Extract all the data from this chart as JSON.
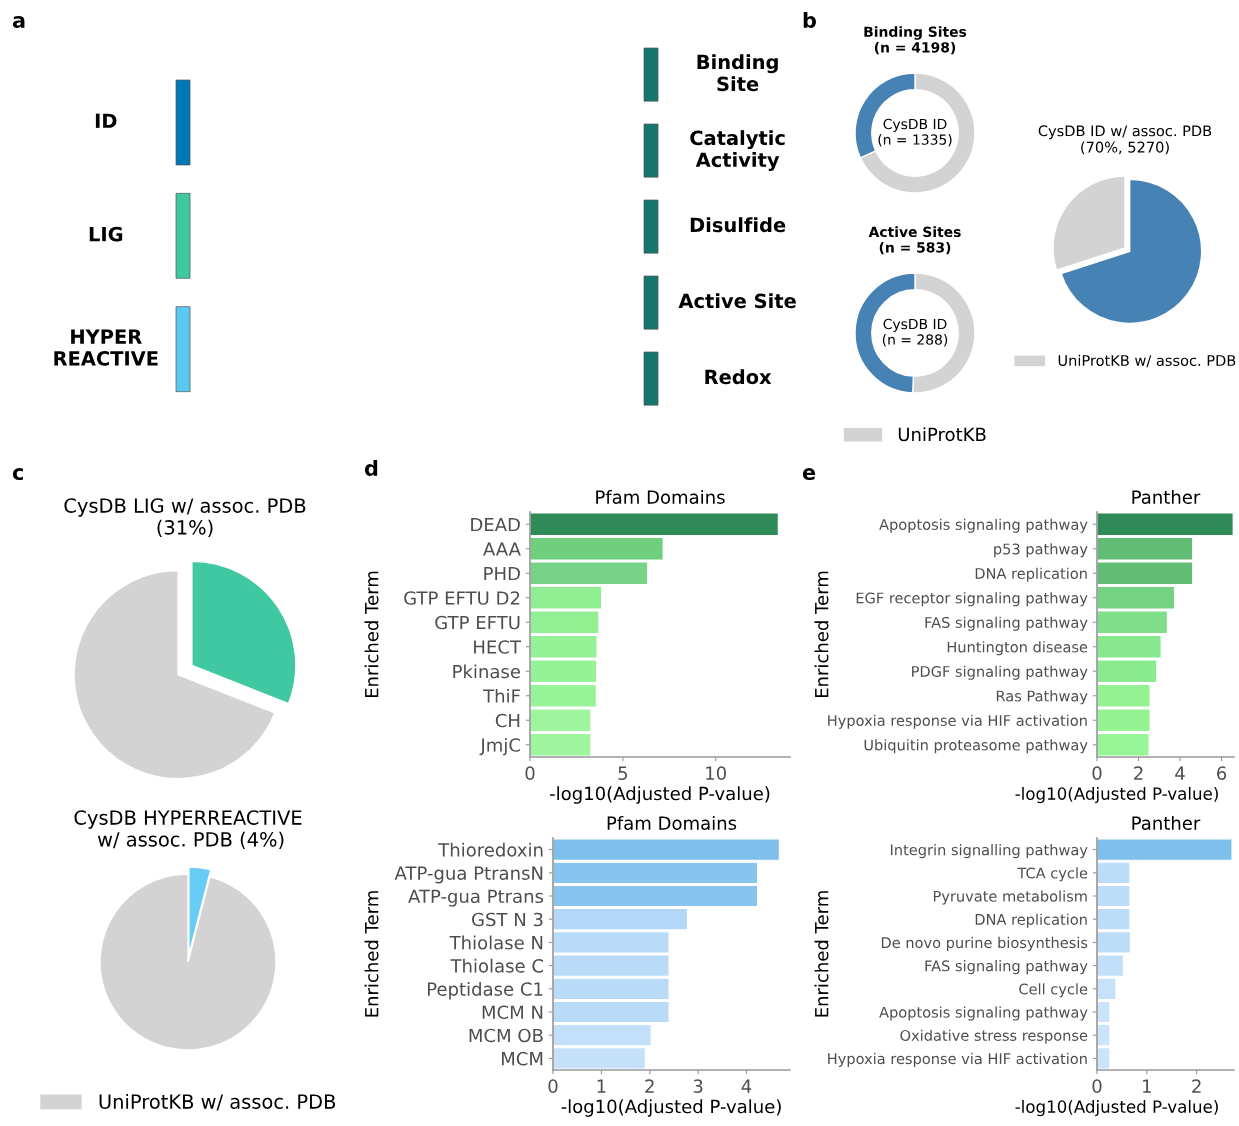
{
  "chart_data": [
    {
      "type": "other",
      "categories": [
        "ID",
        "LIG",
        "HYPER\nREACTIVE"
      ],
      "y_categories": [
        "Binding\nSite",
        "Catalytic\nActivity",
        "Disulfide",
        "Active Site",
        "Redox"
      ],
      "colors": [
        "#0077b6",
        "#3fc8a0",
        "#5bc8f0",
        "#167570",
        "#167570",
        "#167570",
        "#167570",
        "#167570"
      ],
      "annotations": [
        "a"
      ]
    },
    {
      "type": "donut",
      "title": "Binding Sites\n(n = 4198)",
      "categories": [
        null,
        null
      ],
      "values": [
        68.2,
        31.8
      ],
      "colors": [
        "#d3d3d3",
        "#4682b4"
      ],
      "annotations": [
        "CysDB ID\n(n = 1335)",
        "b"
      ]
    },
    {
      "type": "donut",
      "title": "Active Sites\n(n = 583)",
      "categories": [
        "UniProtKB",
        null
      ],
      "values": [
        50.6,
        49.4
      ],
      "colors": [
        "#d3d3d3",
        "#4682b4"
      ],
      "annotations": [
        "CysDB ID\n(n = 288)"
      ],
      "legend": "bottom"
    },
    {
      "type": "pie",
      "title": "CysDB ID w/ assoc. PDB\n(70%, 5270)",
      "categories": [
        null,
        "UniProtKB w/ assoc. PDB"
      ],
      "values": [
        70,
        30
      ],
      "colors": [
        "#4682b4",
        "#d3d3d3"
      ],
      "legend": "bottom"
    },
    {
      "type": "pie",
      "title": "CysDB LIG w/ assoc. PDB\n(31%)",
      "categories": [
        null,
        null
      ],
      "values": [
        31,
        69
      ],
      "colors": [
        "#40c8a0",
        "#d3d3d3"
      ],
      "annotations": [
        "c"
      ]
    },
    {
      "type": "pie",
      "title": "CysDB HYPERREACTIVE\n w/ assoc. PDB (4%)",
      "categories": [
        null,
        "UniProtKB w/ assoc. PDB"
      ],
      "values": [
        4,
        96
      ],
      "colors": [
        "#66ccf5",
        "#d3d3d3"
      ],
      "legend": "bottom"
    },
    {
      "type": "bar",
      "orientation": "horizontal",
      "title": "Pfam Domains",
      "xlabel": "-log10(Adjusted P-value)",
      "ylabel": "Enriched Term",
      "categories": [
        "DEAD",
        "AAA",
        "PHD",
        "GTP EFTU D2",
        "GTP EFTU",
        "HECT",
        "Pkinase",
        "ThiF",
        "CH",
        "JmjC"
      ],
      "values": [
        13.37,
        7.17,
        6.34,
        3.86,
        3.71,
        3.61,
        3.59,
        3.57,
        3.28,
        3.28
      ],
      "colors": [
        "#2e8b57",
        "#6fcf7c",
        "#77d385",
        "#8fee8f",
        "#92f092",
        "#94f194",
        "#95f295",
        "#96f396",
        "#9ef59e",
        "#9ef59e"
      ],
      "xlim": [
        0,
        14
      ],
      "xticks": [
        0,
        5,
        10
      ],
      "grid": false,
      "annotations": [
        "d"
      ]
    },
    {
      "type": "bar",
      "orientation": "horizontal",
      "title": "Panther",
      "xlabel": "-log10(Adjusted P-value)",
      "ylabel": "Enriched Term",
      "categories": [
        "Apoptosis signaling pathway",
        "p53 pathway",
        "DNA replication",
        "EGF receptor signaling pathway",
        "FAS signaling pathway",
        "Huntington disease",
        "PDGF signaling pathway",
        "Ras Pathway",
        "Hypoxia response via HIF activation",
        "Ubiquitin proteasome pathway"
      ],
      "values": [
        6.56,
        4.61,
        4.61,
        3.74,
        3.39,
        3.09,
        2.88,
        2.56,
        2.56,
        2.51
      ],
      "colors": [
        "#2e8b57",
        "#62bd74",
        "#62bd74",
        "#74d283",
        "#7fdf88",
        "#86e78c",
        "#8aea8e",
        "#93f393",
        "#93f393",
        "#96f596"
      ],
      "xlim": [
        0,
        6.6
      ],
      "xticks": [
        0,
        2,
        4,
        6
      ],
      "grid": false,
      "annotations": [
        "e"
      ]
    },
    {
      "type": "bar",
      "orientation": "horizontal",
      "title": "Pfam Domains",
      "xlabel": "-log10(Adjusted P-value)",
      "ylabel": "Enriched Term",
      "categories": [
        "Thioredoxin",
        "ATP-gua PtransN",
        "ATP-gua Ptrans",
        "GST N 3",
        "Thiolase N",
        "Thiolase C",
        "Peptidase C1",
        "MCM N",
        "MCM OB",
        "MCM"
      ],
      "values": [
        4.68,
        4.23,
        4.23,
        2.78,
        2.4,
        2.4,
        2.4,
        2.4,
        2.03,
        1.91
      ],
      "colors": [
        "#7fbfeb",
        "#88c5ee",
        "#88c5ee",
        "#b3d8f7",
        "#b9dbf8",
        "#b9dbf8",
        "#b9dbf8",
        "#b9dbf8",
        "#c3e0fa",
        "#c5e1fa"
      ],
      "xlim": [
        0,
        4.9
      ],
      "xticks": [
        0,
        1,
        2,
        3,
        4
      ],
      "grid": false
    },
    {
      "type": "bar",
      "orientation": "horizontal",
      "title": "Panther",
      "xlabel": "-log10(Adjusted P-value)",
      "ylabel": "Enriched Term",
      "categories": [
        "Integrin signalling pathway",
        "TCA cycle",
        "Pyruvate metabolism",
        "DNA replication",
        "De novo purine biosynthesis",
        "FAS signaling pathway",
        "Cell cycle",
        "Apoptosis signaling pathway",
        "Oxidative stress response",
        "Hypoxia response via HIF activation"
      ],
      "values": [
        2.71,
        0.66,
        0.66,
        0.66,
        0.67,
        0.53,
        0.38,
        0.26,
        0.26,
        0.26
      ],
      "colors": [
        "#7fbfeb",
        "#bcdcf8",
        "#bcdcf8",
        "#bcdcf8",
        "#bcdcf8",
        "#c2dff9",
        "#c6e1fa",
        "#cbe4fb",
        "#cbe4fb",
        "#cbe4fb"
      ],
      "xlim": [
        0,
        2.75
      ],
      "xticks": [
        0,
        1,
        2
      ],
      "grid": false
    }
  ]
}
